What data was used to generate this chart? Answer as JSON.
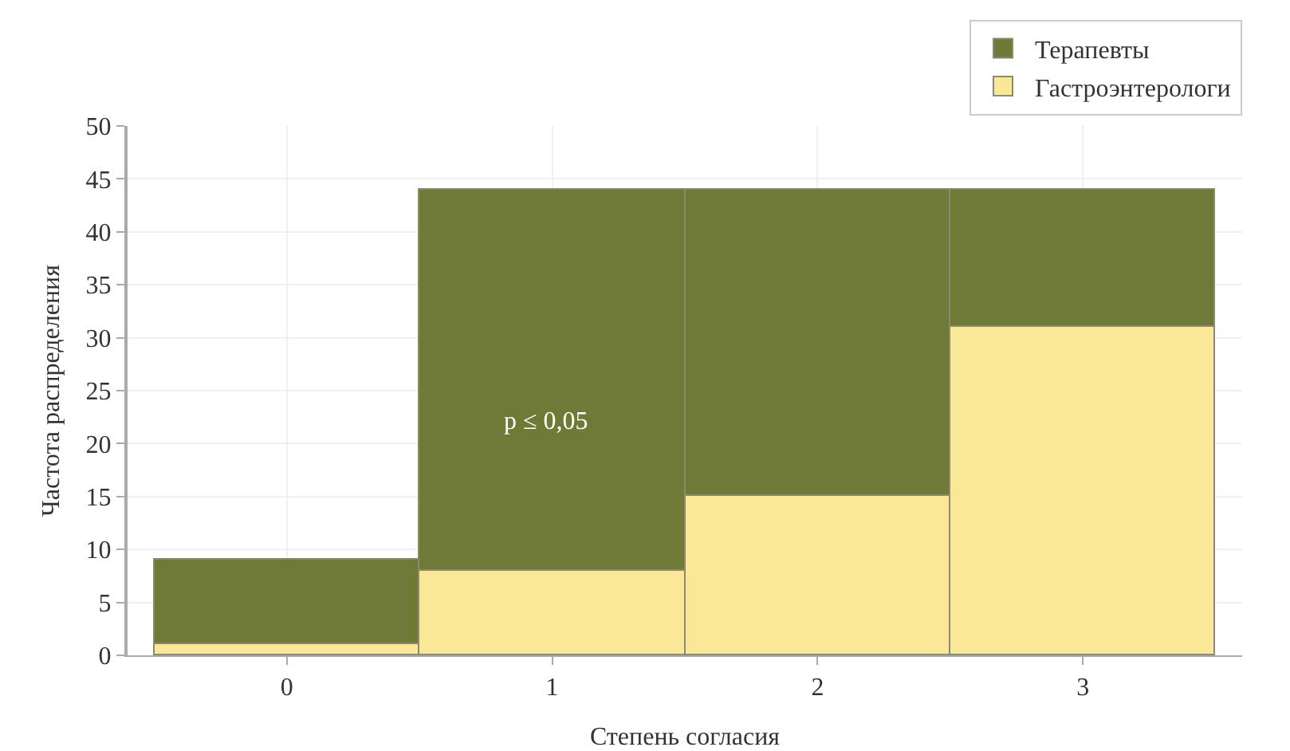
{
  "chart_data": {
    "type": "bar",
    "xlabel": "Степень согласия",
    "ylabel": "Частота распределения",
    "categories": [
      "0",
      "1",
      "2",
      "3"
    ],
    "series": [
      {
        "name": "Гастроэнтерологи",
        "color": "#fbe798",
        "values": [
          1,
          8,
          15,
          31
        ]
      },
      {
        "name": "Терапевты",
        "color": "#6e7a35",
        "values": [
          8,
          36,
          29,
          13
        ]
      }
    ],
    "stacked": true,
    "ylim": [
      0,
      50
    ],
    "yticks": [
      0,
      5,
      10,
      15,
      20,
      25,
      30,
      35,
      40,
      45,
      50
    ],
    "grid": true,
    "legend": "top right",
    "annotations": [
      "p ≤ 0,05"
    ]
  }
}
